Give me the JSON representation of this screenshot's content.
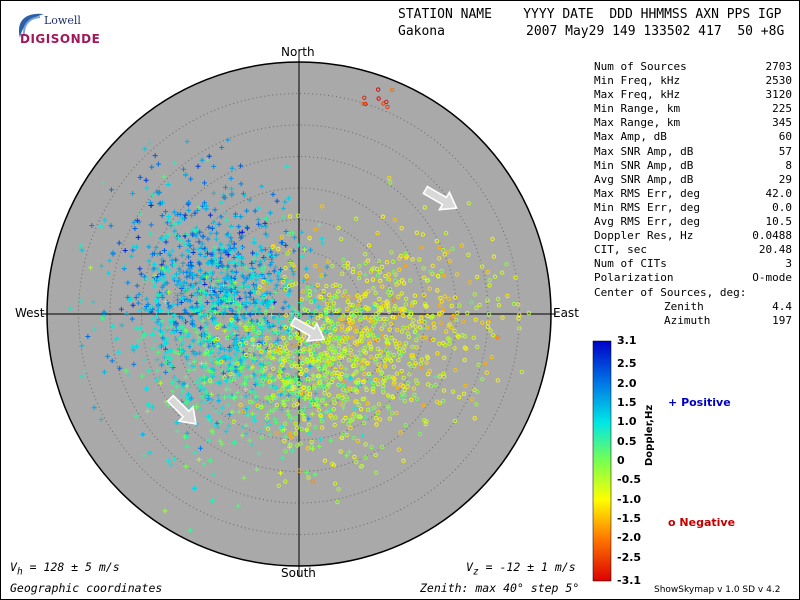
{
  "header": {
    "line1": "STATION NAME    YYYY DATE  DDD HHMMSS AXN PPS IGP",
    "station": "Gakona",
    "line2": "2007 May29 149 133502 417  50 +8G"
  },
  "logo": {
    "top": "Lowell",
    "bottom": "DIGISONDE"
  },
  "stats": [
    {
      "label": "Num of Sources",
      "value": "2703"
    },
    {
      "label": "Min Freq, kHz",
      "value": "2530"
    },
    {
      "label": "Max Freq, kHz",
      "value": "3120"
    },
    {
      "label": "Min Range, km",
      "value": "225"
    },
    {
      "label": "Max Range, km",
      "value": "345"
    },
    {
      "label": "Max Amp, dB",
      "value": "60"
    },
    {
      "label": "Max SNR Amp, dB",
      "value": "57"
    },
    {
      "label": "Min SNR Amp, dB",
      "value": "8"
    },
    {
      "label": "Avg SNR Amp, dB",
      "value": "29"
    },
    {
      "label": "Max RMS Err, deg",
      "value": "42.0"
    },
    {
      "label": "Min RMS Err, deg",
      "value": "0.0"
    },
    {
      "label": "Avg RMS Err, deg",
      "value": "10.5"
    },
    {
      "label": "Doppler Res, Hz",
      "value": "0.0488"
    },
    {
      "label": "CIT, sec",
      "value": "20.48"
    },
    {
      "label": "Num of CITs",
      "value": "3"
    },
    {
      "label": "Polarization",
      "value": "O-mode"
    }
  ],
  "center": {
    "title": "Center of Sources, deg:",
    "zenith_label": "Zenith",
    "zenith_value": "4.4",
    "azimuth_label": "Azimuth",
    "azimuth_value": "197"
  },
  "directions": {
    "north": "North",
    "south": "South",
    "east": "East",
    "west": "West"
  },
  "velocity": {
    "vh_label": "V",
    "vh_sub": "h",
    "vh_value": " = 128 ± 5 m/s",
    "vz_label": "V",
    "vz_sub": "z",
    "vz_value": " = -12 ± 1 m/s"
  },
  "footer_left": "Geographic coordinates",
  "footer_mid": "Zenith: max 40°  step 5°",
  "footer_app": "ShowSkymap v 1.0   SD v 4.2",
  "legend": {
    "positive": "Positive",
    "negative": "Negative",
    "positive_symbol": "+",
    "negative_symbol": "o",
    "axis_label": "Doppler,Hz"
  },
  "chart_data": {
    "type": "scatter",
    "title": "",
    "projection": "polar skymap",
    "zenith_max_deg": 40,
    "zenith_step_deg": 5,
    "grid": true,
    "colorbar": {
      "label": "Doppler,Hz",
      "range": [
        -3.1,
        3.1
      ],
      "ticks": [
        "3.1",
        "2.5",
        "2.0",
        "1.5",
        "1.0",
        "0.5",
        "0",
        "-0.5",
        "-1.0",
        "-1.5",
        "-2.0",
        "-2.5",
        "-3.1"
      ]
    },
    "series": [
      {
        "name": "Positive",
        "marker": "+",
        "clusters": [
          {
            "azimuth_deg": 300,
            "zenith_deg": 18,
            "doppler_hz": 2.0,
            "weight": 0.1,
            "spread_deg": 7
          },
          {
            "azimuth_deg": 285,
            "zenith_deg": 14,
            "doppler_hz": 1.4,
            "weight": 0.18,
            "spread_deg": 8
          },
          {
            "azimuth_deg": 260,
            "zenith_deg": 12,
            "doppler_hz": 1.0,
            "weight": 0.14,
            "spread_deg": 8
          },
          {
            "azimuth_deg": 235,
            "zenith_deg": 15,
            "doppler_hz": 0.7,
            "weight": 0.08,
            "spread_deg": 8
          },
          {
            "azimuth_deg": 200,
            "zenith_deg": 10,
            "doppler_hz": 0.3,
            "weight": 0.1,
            "spread_deg": 7
          }
        ]
      },
      {
        "name": "Negative",
        "marker": "o",
        "clusters": [
          {
            "azimuth_deg": 110,
            "zenith_deg": 10,
            "doppler_hz": -0.8,
            "weight": 0.18,
            "spread_deg": 8
          },
          {
            "azimuth_deg": 150,
            "zenith_deg": 10,
            "doppler_hz": -0.5,
            "weight": 0.14,
            "spread_deg": 7
          },
          {
            "azimuth_deg": 90,
            "zenith_deg": 22,
            "doppler_hz": -0.9,
            "weight": 0.06,
            "spread_deg": 7
          },
          {
            "azimuth_deg": 20,
            "zenith_deg": 38,
            "doppler_hz": -2.8,
            "weight": 0.004,
            "spread_deg": 1.5
          }
        ]
      }
    ],
    "motion_arrows": [
      {
        "azimuth_deg": 51,
        "zenith_deg": 29,
        "direction_deg": 120
      },
      {
        "azimuth_deg": 150,
        "zenith_deg": 3,
        "direction_deg": 120
      },
      {
        "azimuth_deg": 230,
        "zenith_deg": 24,
        "direction_deg": 135
      }
    ]
  }
}
